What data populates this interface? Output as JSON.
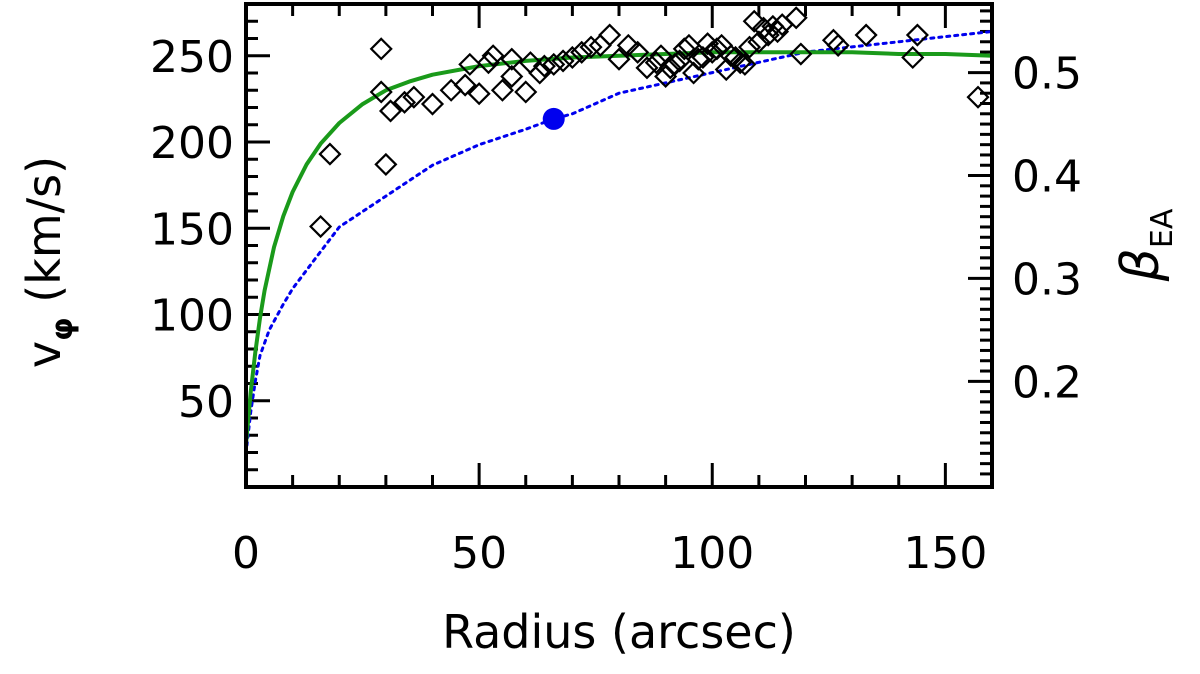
{
  "chart_data": {
    "type": "scatter",
    "xlabel": "Radius (arcsec)",
    "ylabel_main": "v",
    "ylabel_sub": "φ",
    "ylabel_unit": " (km/s)",
    "y2label_main": "β",
    "y2label_sub": "EA",
    "xlim": [
      0,
      160
    ],
    "ylim": [
      0,
      280
    ],
    "y2lim": [
      0.0973,
      0.5667
    ],
    "xticks": [
      0,
      50,
      100,
      150
    ],
    "xtick_labels": [
      "0",
      "50",
      "100",
      "150"
    ],
    "yticks": [
      50,
      100,
      150,
      200,
      250
    ],
    "ytick_labels": [
      "50",
      "100",
      "150",
      "200",
      "250"
    ],
    "y2ticks": [
      0.2,
      0.3,
      0.4,
      0.5
    ],
    "y2tick_labels": [
      "0.2",
      "0.3",
      "0.4",
      "0.5"
    ],
    "grid": false,
    "colors": {
      "model_curve": "#1a9a1a",
      "beta_curve": "#0000ee",
      "beta_point": "#0000ee",
      "data": "#000000"
    },
    "series": [
      {
        "kind": "diamond_markers",
        "x": [
          16,
          18,
          29,
          29,
          30,
          31,
          34,
          36,
          40,
          44,
          47,
          48,
          50,
          52,
          53,
          55,
          57,
          57,
          60,
          61,
          63,
          64,
          66,
          68,
          70,
          72,
          74,
          76,
          78,
          80,
          82,
          84,
          86,
          88,
          89,
          90,
          91,
          92,
          93,
          94,
          95,
          96,
          97,
          98,
          99,
          100,
          101,
          102,
          103,
          104,
          105,
          106,
          107,
          108,
          109,
          110,
          111,
          112,
          113,
          114,
          115,
          118,
          119,
          126,
          127,
          133,
          143,
          144,
          157
        ],
        "y": [
          151,
          193,
          254,
          229,
          187,
          218,
          223,
          226,
          222,
          230,
          233,
          245,
          228,
          246,
          250,
          230,
          248,
          238,
          229,
          246,
          240,
          244,
          245,
          247,
          249,
          252,
          255,
          256,
          262,
          248,
          256,
          252,
          243,
          246,
          250,
          238,
          243,
          245,
          247,
          254,
          256,
          240,
          248,
          249,
          257,
          252,
          254,
          256,
          242,
          250,
          249,
          246,
          245,
          255,
          270,
          258,
          266,
          262,
          267,
          264,
          268,
          272,
          251,
          259,
          256,
          262,
          249,
          262,
          226
        ]
      },
      {
        "kind": "model_curve",
        "x": [
          0,
          1,
          2,
          3,
          4,
          6,
          8,
          10,
          13,
          16,
          20,
          25,
          30,
          35,
          40,
          50,
          60,
          70,
          80,
          90,
          100,
          110,
          120,
          130,
          140,
          150,
          160
        ],
        "y": [
          25,
          55,
          78,
          98,
          114,
          139,
          157,
          171,
          187,
          199,
          211,
          222,
          230,
          235,
          239,
          244,
          247,
          249,
          250,
          251,
          252,
          252,
          252,
          252,
          251,
          251,
          250
        ]
      },
      {
        "kind": "beta_curve",
        "x": [
          0,
          1,
          2,
          3,
          5,
          8,
          10,
          15,
          20,
          30,
          40,
          50,
          60,
          66,
          70,
          80,
          90,
          100,
          110,
          120,
          130,
          140,
          150,
          160
        ],
        "y2": [
          0.13,
          0.17,
          0.2,
          0.225,
          0.25,
          0.275,
          0.29,
          0.32,
          0.35,
          0.38,
          0.41,
          0.43,
          0.445,
          0.455,
          0.46,
          0.48,
          0.49,
          0.5,
          0.51,
          0.52,
          0.525,
          0.53,
          0.535,
          0.54
        ]
      },
      {
        "kind": "beta_point",
        "x": [
          66
        ],
        "y2": [
          0.455
        ]
      }
    ]
  }
}
